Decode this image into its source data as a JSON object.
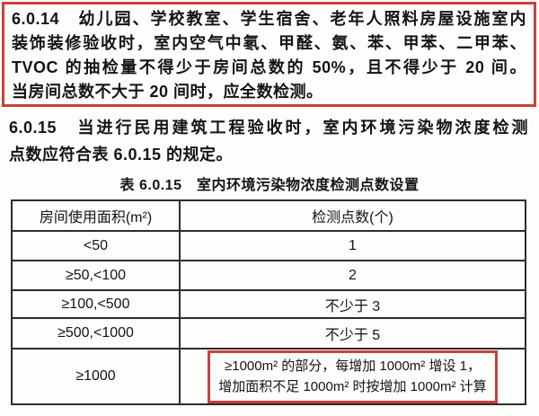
{
  "colors": {
    "highlight_red": "#c8423a",
    "text": "#141414",
    "table_border": "#2c2c2c",
    "background": "#fdfdfc"
  },
  "clause_6014": {
    "number": "6.0.14",
    "lines": [
      "6.0.14　幼儿园、学校教室、学生宿舍、老年人照料房屋设施室内",
      "装饰装修验收时，室内空气中氡、甲醛、氨、苯、甲苯、二甲苯、",
      "TVOC 的抽检量不得少于房间总数的 50%，且不得少于 20 间。",
      "当房间总数不大于 20 间时，应全数检测。"
    ]
  },
  "clause_6015": {
    "number": "6.0.15",
    "lines": [
      "6.0.15　当进行民用建筑工程验收时，室内环境污染物浓度检测",
      "点数应符合表 6.0.15 的规定。"
    ]
  },
  "table": {
    "caption": "表 6.0.15　室内环境污染物浓度检测点数设置",
    "col_headers": [
      "房间使用面积(m²)",
      "检测点数(个)"
    ],
    "rows": [
      {
        "area": "<50",
        "points": "1"
      },
      {
        "area": "≥50,<100",
        "points": "2"
      },
      {
        "area": "≥100,<500",
        "points": "不少于 3"
      },
      {
        "area": "≥500,<1000",
        "points": "不少于 5"
      },
      {
        "area": "≥1000",
        "points": ""
      }
    ],
    "last_row_note_lines": [
      "≥1000m² 的部分，每增加 1000m² 增设 1，",
      "增加面积不足 1000m² 时按增加 1000m² 计算"
    ]
  }
}
